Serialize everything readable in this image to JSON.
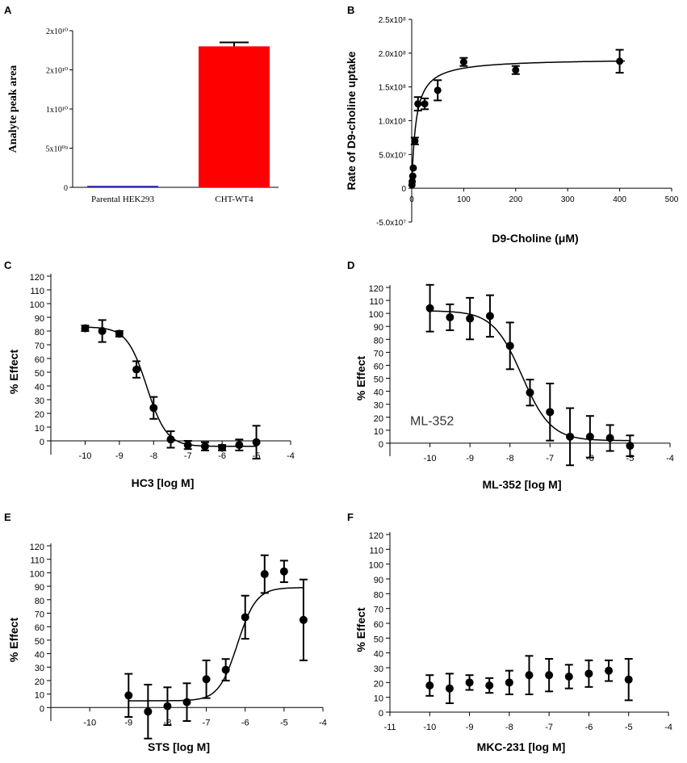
{
  "chart_data": [
    {
      "panel": "A",
      "type": "bar",
      "ylabel": "Analyte peak area",
      "categories": [
        "Parental HEK293",
        "CHT-WT4"
      ],
      "values": [
        180000000,
        18000000000
      ],
      "errors": [
        0,
        500000000
      ],
      "colors": [
        "#1a1aa6",
        "#ff0000"
      ],
      "ylim": [
        0,
        20000000000
      ],
      "y_ticks": [
        0,
        5000000000,
        10000000000,
        15000000000,
        20000000000
      ],
      "y_tick_labels": [
        "0",
        "5x10⁰⁹",
        "1x10¹⁰",
        "2x10¹⁰",
        "2x10¹⁰"
      ]
    },
    {
      "panel": "B",
      "type": "scatter",
      "xlabel": "D9-Choline (μM)",
      "ylabel": "Rate of D9-choline uptake",
      "xlim": [
        0,
        500
      ],
      "ylim": [
        -50000000,
        250000000
      ],
      "x_ticks": [
        0,
        100,
        200,
        300,
        400,
        500
      ],
      "x_tick_labels": [
        "0",
        "100",
        "200",
        "300",
        "400",
        "500"
      ],
      "y_ticks": [
        -50000000,
        0,
        50000000,
        100000000,
        150000000,
        200000000,
        250000000
      ],
      "y_tick_labels": [
        "-5.0x10⁷",
        "0",
        "5.0x10⁷",
        "1.0x10⁸",
        "1.5x10⁸",
        "2.0x10⁸",
        "2.5x10⁸"
      ],
      "x": [
        0.5,
        1,
        2,
        3,
        6,
        12,
        25,
        50,
        100,
        200,
        400
      ],
      "y": [
        5000000,
        10000000,
        18000000,
        30000000,
        70000000,
        125000000,
        125000000,
        145000000,
        187000000,
        175000000,
        188000000
      ],
      "errors": [
        2000000,
        3000000,
        3000000,
        4000000,
        5000000,
        10000000,
        8000000,
        15000000,
        6000000,
        6000000,
        17000000
      ],
      "fit": {
        "model": "michaelis-menten",
        "vmax": 192000000,
        "km": 8
      }
    },
    {
      "panel": "C",
      "type": "scatter",
      "xlabel": "HC3 [log M]",
      "ylabel": "% Effect",
      "xlim": [
        -11,
        -4
      ],
      "ylim": [
        -10,
        120
      ],
      "x_ticks": [
        -10,
        -9,
        -8,
        -7,
        -6,
        -5,
        -4
      ],
      "x_tick_labels": [
        "-10",
        "-9",
        "-8",
        "-7",
        "-6",
        "-5",
        "-4"
      ],
      "y_ticks": [
        0,
        10,
        20,
        30,
        40,
        50,
        60,
        70,
        80,
        90,
        100,
        110,
        120
      ],
      "y_tick_labels": [
        "0",
        "10",
        "20",
        "30",
        "40",
        "50",
        "60",
        "70",
        "80",
        "90",
        "100",
        "110",
        "120"
      ],
      "x": [
        -10,
        -9.5,
        -9,
        -8.5,
        -8,
        -7.5,
        -7,
        -6.5,
        -6,
        -5.5,
        -5
      ],
      "y": [
        82,
        80,
        78,
        52,
        24,
        1,
        -3,
        -4,
        -5,
        -3,
        -1
      ],
      "errors": [
        2,
        8,
        2,
        6,
        8,
        6,
        3,
        3,
        2,
        4,
        12
      ],
      "fit": {
        "model": "sigmoid",
        "top": 83,
        "bottom": -4,
        "ec50_log": -8.2,
        "hill": -1.5
      }
    },
    {
      "panel": "D",
      "type": "scatter",
      "xlabel": "ML-352 [log M]",
      "ylabel": "% Effect",
      "annotation": "ML-352",
      "xlim": [
        -11,
        -4
      ],
      "ylim": [
        -10,
        120
      ],
      "x_ticks": [
        -10,
        -9,
        -8,
        -7,
        -6,
        -5,
        -4
      ],
      "x_tick_labels": [
        "-10",
        "-9",
        "-8",
        "-7",
        "-6",
        "-5",
        "-4"
      ],
      "y_ticks": [
        0,
        10,
        20,
        30,
        40,
        50,
        60,
        70,
        80,
        90,
        100,
        110,
        120
      ],
      "y_tick_labels": [
        "0",
        "10",
        "20",
        "30",
        "40",
        "50",
        "60",
        "70",
        "80",
        "90",
        "100",
        "110",
        "120"
      ],
      "x": [
        -10,
        -9.5,
        -9,
        -8.5,
        -8,
        -7.5,
        -7,
        -6.5,
        -6,
        -5.5,
        -5
      ],
      "y": [
        104,
        97,
        96,
        98,
        75,
        39,
        24,
        5,
        5,
        4,
        -2
      ],
      "errors": [
        18,
        10,
        16,
        16,
        18,
        10,
        22,
        22,
        16,
        10,
        8
      ],
      "fit": {
        "model": "sigmoid",
        "top": 102,
        "bottom": 2,
        "ec50_log": -7.7,
        "hill": -1.2
      }
    },
    {
      "panel": "E",
      "type": "scatter",
      "xlabel": "STS [log M]",
      "ylabel": "% Effect",
      "xlim": [
        -11,
        -4
      ],
      "ylim": [
        -10,
        120
      ],
      "x_ticks": [
        -10,
        -9,
        -8,
        -7,
        -6,
        -5,
        -4
      ],
      "x_tick_labels": [
        "-10",
        "-9",
        "-8",
        "-7",
        "-6",
        "-5",
        "-4"
      ],
      "y_ticks": [
        0,
        10,
        20,
        30,
        40,
        50,
        60,
        70,
        80,
        90,
        100,
        110,
        120
      ],
      "y_tick_labels": [
        "0",
        "10",
        "20",
        "30",
        "40",
        "50",
        "60",
        "70",
        "80",
        "90",
        "100",
        "110",
        "120"
      ],
      "x": [
        -9,
        -8.5,
        -8,
        -7.5,
        -7,
        -6.5,
        -6,
        -5.5,
        -5,
        -4.5
      ],
      "y": [
        9,
        -3,
        1,
        4,
        21,
        28,
        67,
        99,
        101,
        65
      ],
      "errors": [
        16,
        20,
        14,
        14,
        14,
        8,
        16,
        14,
        8,
        30
      ],
      "fit": {
        "model": "sigmoid",
        "top": 89,
        "bottom": 5,
        "ec50_log": -6.2,
        "hill": 1.8
      }
    },
    {
      "panel": "F",
      "type": "scatter",
      "xlabel": "MKC-231 [log M]",
      "ylabel": "% Effect",
      "xlim": [
        -11,
        -4
      ],
      "ylim": [
        0,
        120
      ],
      "x_ticks": [
        -11,
        -10,
        -9,
        -8,
        -7,
        -6,
        -5,
        -4
      ],
      "x_tick_labels": [
        "-11",
        "-10",
        "-9",
        "-8",
        "-7",
        "-6",
        "-5",
        "-4"
      ],
      "y_ticks": [
        0,
        10,
        20,
        30,
        40,
        50,
        60,
        70,
        80,
        90,
        100,
        110,
        120
      ],
      "y_tick_labels": [
        "0",
        "10",
        "20",
        "30",
        "40",
        "50",
        "60",
        "70",
        "80",
        "90",
        "100",
        "110",
        "120"
      ],
      "x": [
        -10,
        -9.5,
        -9,
        -8.5,
        -8,
        -7.5,
        -7,
        -6.5,
        -6,
        -5.5,
        -5
      ],
      "y": [
        18,
        16,
        20,
        18,
        20,
        25,
        25,
        24,
        26,
        28,
        22
      ],
      "errors": [
        7,
        10,
        5,
        5,
        8,
        13,
        11,
        8,
        9,
        7,
        14
      ]
    }
  ]
}
